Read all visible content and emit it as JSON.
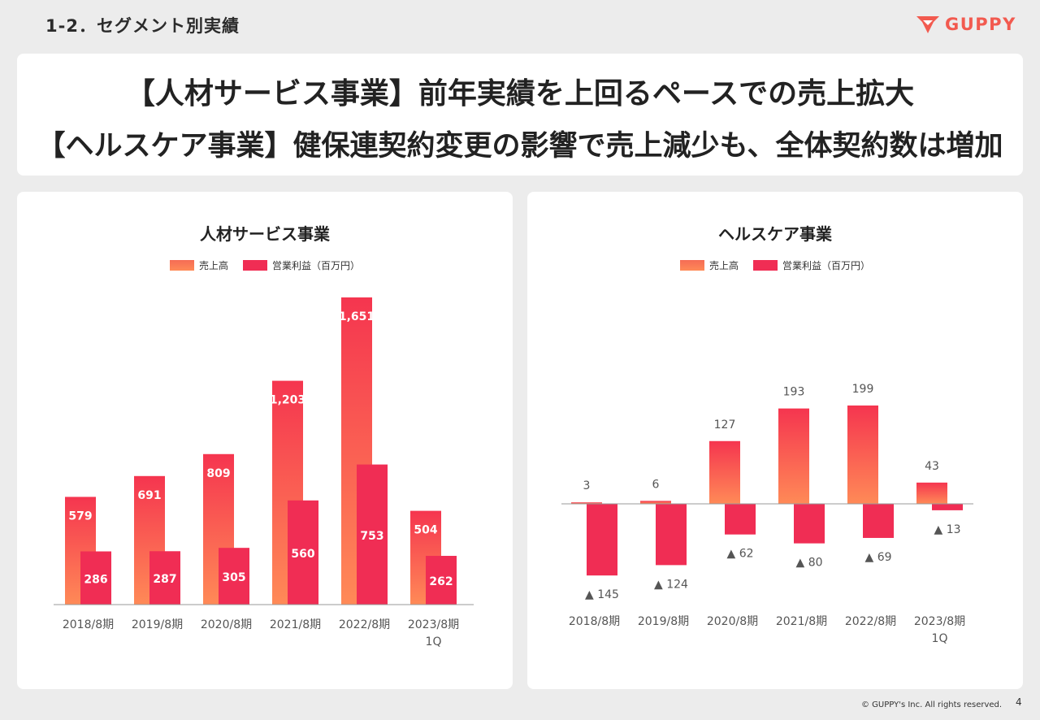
{
  "header": {
    "section_title": "1-2．セグメント別実績",
    "logo_text": "GUPPY"
  },
  "banner": {
    "line1": "【人材サービス事業】前年実績を上回るペースでの売上拡大",
    "line2": "【ヘルスケア事業】健保連契約変更の影響で売上減少も、全体契約数は増加"
  },
  "colors": {
    "sales_top": "#f5354f",
    "sales_bottom": "#ff8a57",
    "profit": "#f02d54",
    "logo": "#f25a4f"
  },
  "legend": {
    "sales": "売上高",
    "profit": "営業利益（百万円）"
  },
  "chart_data": [
    {
      "type": "bar",
      "title": "人材サービス事業",
      "categories": [
        "2018/8期",
        "2019/8期",
        "2020/8期",
        "2021/8期",
        "2022/8期",
        "2023/8期\n1Q"
      ],
      "series": [
        {
          "name": "売上高",
          "values": [
            579,
            691,
            809,
            1203,
            1651,
            504
          ],
          "labels": [
            "579",
            "691",
            "809",
            "1,203",
            "1,651",
            "504"
          ]
        },
        {
          "name": "営業利益（百万円）",
          "values": [
            286,
            287,
            305,
            560,
            753,
            262
          ],
          "labels": [
            "286",
            "287",
            "305",
            "560",
            "753",
            "262"
          ]
        }
      ]
    },
    {
      "type": "bar",
      "title": "ヘルスケア事業",
      "categories": [
        "2018/8期",
        "2019/8期",
        "2020/8期",
        "2021/8期",
        "2022/8期",
        "2023/8期\n1Q"
      ],
      "series": [
        {
          "name": "売上高",
          "values": [
            3,
            6,
            127,
            193,
            199,
            43
          ],
          "labels": [
            "3",
            "6",
            "127",
            "193",
            "199",
            "43"
          ]
        },
        {
          "name": "営業利益（百万円）",
          "values": [
            -145,
            -124,
            -62,
            -80,
            -69,
            -13
          ],
          "labels": [
            "▲ 145",
            "▲ 124",
            "▲ 62",
            "▲ 80",
            "▲ 69",
            "▲ 13"
          ]
        }
      ]
    }
  ],
  "footer": {
    "copyright": "© GUPPY's Inc. All rights reserved.",
    "page": "4"
  }
}
